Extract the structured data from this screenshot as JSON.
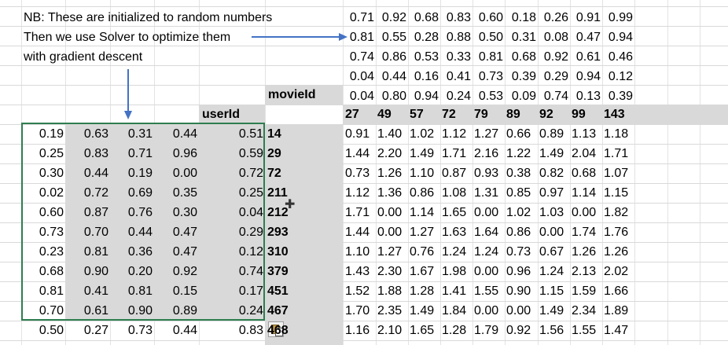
{
  "notes": [
    "NB: These are initialized to random numbers",
    "Then we use Solver to optimize them",
    "with gradient descent"
  ],
  "labels": {
    "movieId": "movieId",
    "userId": "userId"
  },
  "movie_factors": [
    [
      "0.71",
      "0.92",
      "0.68",
      "0.83",
      "0.60",
      "0.18",
      "0.26",
      "0.91",
      "0.99"
    ],
    [
      "0.81",
      "0.55",
      "0.28",
      "0.88",
      "0.50",
      "0.31",
      "0.08",
      "0.47",
      "0.94"
    ],
    [
      "0.74",
      "0.86",
      "0.53",
      "0.33",
      "0.81",
      "0.68",
      "0.92",
      "0.61",
      "0.46"
    ],
    [
      "0.04",
      "0.44",
      "0.16",
      "0.41",
      "0.73",
      "0.39",
      "0.29",
      "0.94",
      "0.12"
    ],
    [
      "0.04",
      "0.80",
      "0.94",
      "0.24",
      "0.53",
      "0.09",
      "0.74",
      "0.13",
      "0.39"
    ]
  ],
  "movie_ids": [
    "27",
    "49",
    "57",
    "72",
    "79",
    "89",
    "92",
    "99",
    "143"
  ],
  "users": [
    {
      "f": [
        "0.19",
        "0.63",
        "0.31",
        "0.44",
        "0.51"
      ],
      "id": "14",
      "preds": [
        "0.91",
        "1.40",
        "1.02",
        "1.12",
        "1.27",
        "0.66",
        "0.89",
        "1.13",
        "1.18"
      ]
    },
    {
      "f": [
        "0.25",
        "0.83",
        "0.71",
        "0.96",
        "0.59"
      ],
      "id": "29",
      "preds": [
        "1.44",
        "2.20",
        "1.49",
        "1.71",
        "2.16",
        "1.22",
        "1.49",
        "2.04",
        "1.71"
      ]
    },
    {
      "f": [
        "0.30",
        "0.44",
        "0.19",
        "0.00",
        "0.72"
      ],
      "id": "72",
      "preds": [
        "0.73",
        "1.26",
        "1.10",
        "0.87",
        "0.93",
        "0.38",
        "0.82",
        "0.68",
        "1.07"
      ]
    },
    {
      "f": [
        "0.02",
        "0.72",
        "0.69",
        "0.35",
        "0.25"
      ],
      "id": "211",
      "preds": [
        "1.12",
        "1.36",
        "0.86",
        "1.08",
        "1.31",
        "0.85",
        "0.97",
        "1.14",
        "1.15"
      ]
    },
    {
      "f": [
        "0.60",
        "0.87",
        "0.76",
        "0.30",
        "0.04"
      ],
      "id": "212",
      "preds": [
        "1.71",
        "0.00",
        "1.14",
        "1.65",
        "0.00",
        "1.02",
        "1.03",
        "0.00",
        "1.82"
      ]
    },
    {
      "f": [
        "0.73",
        "0.70",
        "0.44",
        "0.47",
        "0.29"
      ],
      "id": "293",
      "preds": [
        "1.44",
        "0.00",
        "1.27",
        "1.63",
        "1.64",
        "0.86",
        "0.00",
        "1.74",
        "1.76"
      ]
    },
    {
      "f": [
        "0.23",
        "0.81",
        "0.36",
        "0.47",
        "0.12"
      ],
      "id": "310",
      "preds": [
        "1.10",
        "1.27",
        "0.76",
        "1.24",
        "1.24",
        "0.73",
        "0.67",
        "1.26",
        "1.26"
      ]
    },
    {
      "f": [
        "0.68",
        "0.90",
        "0.20",
        "0.92",
        "0.74"
      ],
      "id": "379",
      "preds": [
        "1.43",
        "2.30",
        "1.67",
        "1.98",
        "0.00",
        "0.96",
        "1.24",
        "2.13",
        "2.02"
      ]
    },
    {
      "f": [
        "0.81",
        "0.41",
        "0.81",
        "0.15",
        "0.17"
      ],
      "id": "451",
      "preds": [
        "1.52",
        "1.88",
        "1.28",
        "1.41",
        "1.55",
        "0.90",
        "1.15",
        "1.59",
        "1.66"
      ]
    },
    {
      "f": [
        "0.70",
        "0.61",
        "0.90",
        "0.89",
        "0.24"
      ],
      "id": "467",
      "preds": [
        "1.70",
        "2.35",
        "1.49",
        "1.84",
        "0.00",
        "0.00",
        "1.49",
        "2.34",
        "1.89"
      ]
    },
    {
      "f": [
        "0.50",
        "0.27",
        "0.73",
        "0.44",
        "0.83"
      ],
      "id": "468",
      "preds": [
        "1.16",
        "2.10",
        "1.65",
        "1.28",
        "1.79",
        "0.92",
        "1.56",
        "1.55",
        "1.47"
      ]
    }
  ]
}
